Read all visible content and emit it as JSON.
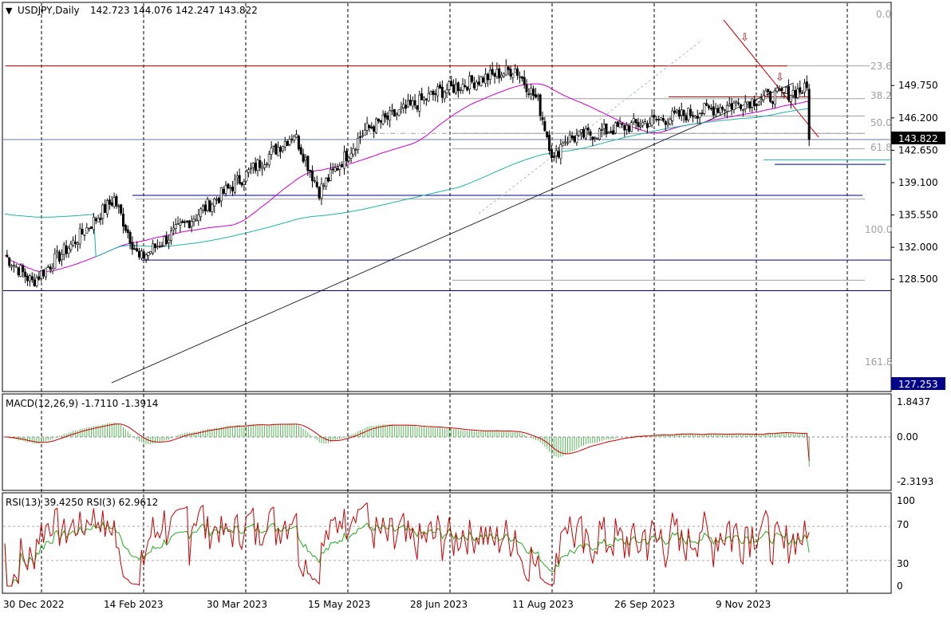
{
  "main": {
    "header_arrow": "▼",
    "symbol": "USDJPY,Daily",
    "ohlc": "142.723 144.076 142.247 143.822",
    "y_ticks": [
      "149.750",
      "146.200",
      "142.650",
      "139.100",
      "135.550",
      "132.000",
      "128.500"
    ],
    "price_badge": "143.822",
    "low_badge": "127.253",
    "fib_levels": [
      "0.0",
      "23.6",
      "38.2",
      "50.0",
      "61.8",
      "100.0",
      "161.8"
    ]
  },
  "macd": {
    "label": "MACD(12,26,9) -1.7110 -1.3914",
    "y_ticks": [
      "1.8437",
      "0.00",
      "-2.3193"
    ]
  },
  "rsi": {
    "label": "RSI(13) 39.4250  RSI(3) 62.9612",
    "y_ticks": [
      "100",
      "70",
      "30",
      "0"
    ]
  },
  "x_ticks": [
    "30 Dec 2022",
    "14 Feb 2023",
    "30 Mar 2023",
    "15 May 2023",
    "28 Jun 2023",
    "11 Aug 2023",
    "26 Sep 2023",
    "9 Nov 2023"
  ],
  "colors": {
    "bull": "#ffffff",
    "bear": "#000000",
    "resistance": "#cc0000",
    "ma_fast": "#cc00cc",
    "ma_slow": "#20b2aa",
    "support": "#00008b",
    "macd_hist": "#5cb85c",
    "signal": "#cc0000",
    "rsi_slow": "#22aa22",
    "rsi_fast": "#cc0000"
  },
  "chart_data": [
    {
      "type": "candlestick",
      "title": "USDJPY,Daily",
      "last_bar": {
        "open": 142.723,
        "high": 144.076,
        "low": 142.247,
        "close": 143.822
      },
      "ylim": [
        126.6,
        151.6
      ],
      "x_range": [
        "2022-12-30",
        "2023-12-01"
      ],
      "approx_closes_by_period": [
        {
          "date": "2022-12-30",
          "close": 131.1
        },
        {
          "date": "2023-01-16",
          "close": 128.2
        },
        {
          "date": "2023-02-14",
          "close": 133.0
        },
        {
          "date": "2023-03-08",
          "close": 137.3
        },
        {
          "date": "2023-03-24",
          "close": 130.7
        },
        {
          "date": "2023-04-20",
          "close": 134.3
        },
        {
          "date": "2023-05-30",
          "close": 140.0
        },
        {
          "date": "2023-06-28",
          "close": 144.5
        },
        {
          "date": "2023-07-14",
          "close": 138.2
        },
        {
          "date": "2023-08-11",
          "close": 144.8
        },
        {
          "date": "2023-09-26",
          "close": 149.0
        },
        {
          "date": "2023-11-13",
          "close": 151.6
        },
        {
          "date": "2023-11-27",
          "close": 148.0
        },
        {
          "date": "2023-12-07",
          "close": 141.5
        },
        {
          "date": "2023-12-13",
          "close": 143.8
        }
      ],
      "fibonacci_levels": [
        {
          "label": "0.0",
          "price": 151.9
        },
        {
          "label": "23.6",
          "price": 148.3
        },
        {
          "label": "38.2",
          "price": 146.4
        },
        {
          "label": "50.0",
          "price": 144.5
        },
        {
          "label": "61.8",
          "price": 142.8
        },
        {
          "label": "100.0",
          "price": 137.3
        },
        {
          "label": "161.8",
          "price": 128.4
        }
      ],
      "horizontal_lines": [
        {
          "price": 151.9,
          "color": "#cc0000"
        },
        {
          "price": 148.5,
          "color": "#cc0000"
        },
        {
          "price": 137.7,
          "color": "#00008b"
        },
        {
          "price": 130.6,
          "color": "#00008b"
        },
        {
          "price": 127.253,
          "color": "#00008b"
        },
        {
          "price": 141.6,
          "color": "#20b2aa"
        },
        {
          "price": 141.1,
          "color": "#00008b"
        }
      ]
    },
    {
      "type": "bar",
      "title": "MACD(12,26,9)",
      "macd": -1.711,
      "signal": -1.3914,
      "ylim": [
        -2.3193,
        1.8437
      ]
    },
    {
      "type": "line",
      "title": "RSI",
      "series": [
        {
          "name": "RSI(13)",
          "last": 39.425
        },
        {
          "name": "RSI(3)",
          "last": 62.9612
        }
      ],
      "ylim": [
        0,
        100
      ],
      "levels": [
        30,
        70
      ]
    }
  ]
}
